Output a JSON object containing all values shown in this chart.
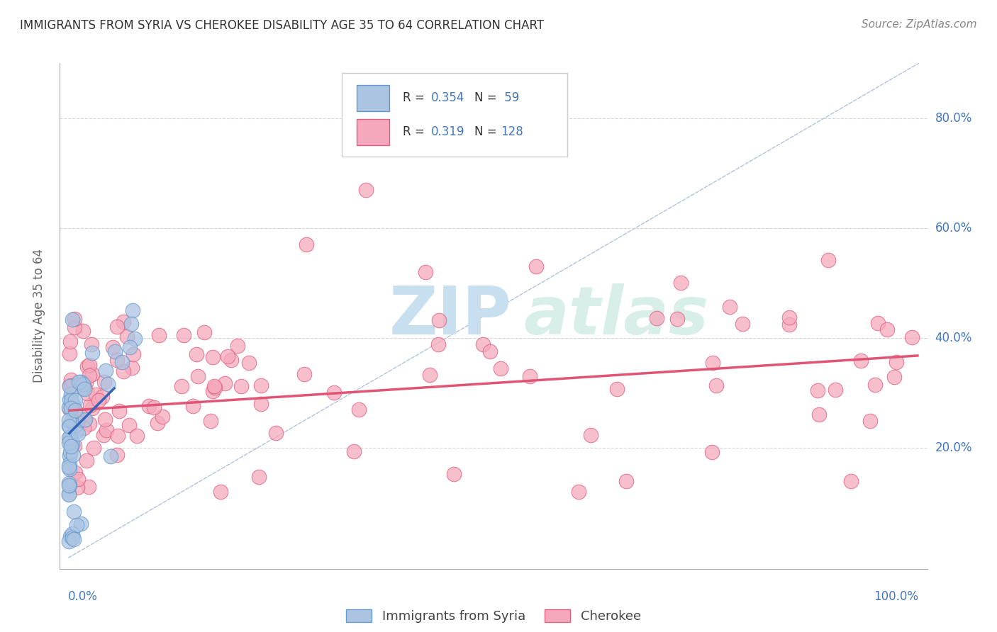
{
  "title": "IMMIGRANTS FROM SYRIA VS CHEROKEE DISABILITY AGE 35 TO 64 CORRELATION CHART",
  "source": "Source: ZipAtlas.com",
  "ylabel": "Disability Age 35 to 64",
  "y_tick_labels": [
    "20.0%",
    "40.0%",
    "60.0%",
    "80.0%"
  ],
  "y_tick_vals": [
    0.2,
    0.4,
    0.6,
    0.8
  ],
  "xlim": [
    0.0,
    1.0
  ],
  "ylim": [
    0.0,
    0.9
  ],
  "legend_r1": "R =",
  "legend_v1": "0.354",
  "legend_n1": "N =",
  "legend_nv1": " 59",
  "legend_r2": "R =",
  "legend_v2": "0.319",
  "legend_n2": "N =",
  "legend_nv2": "128",
  "legend_label1": "Immigrants from Syria",
  "legend_label2": "Cherokee",
  "color_syria": "#aac4e2",
  "color_cherokee": "#f5a8bc",
  "color_syria_edge": "#6699cc",
  "color_cherokee_edge": "#e06080",
  "color_syria_line": "#3366bb",
  "color_cherokee_line": "#e05575",
  "color_diagonal": "#aabbdd",
  "color_grid": "#cccccc",
  "axis_label_color": "#4477bb",
  "background_color": "#ffffff",
  "title_color": "#333333",
  "source_color": "#888888",
  "watermark_zip_color": "#c8dff0",
  "watermark_atlas_color": "#c8e8e0"
}
